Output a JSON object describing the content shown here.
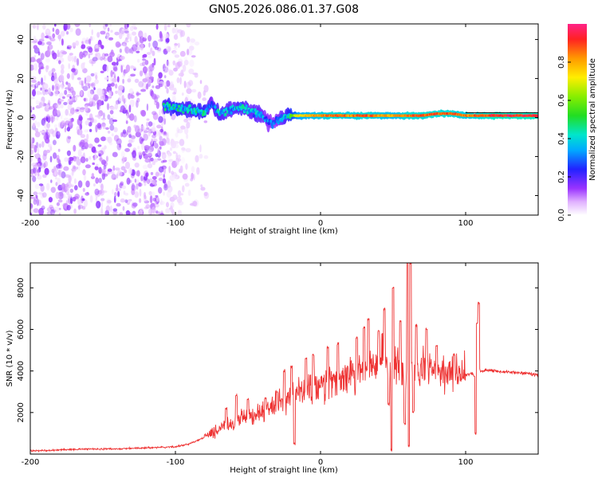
{
  "title": "GN05.2026.086.01.37.G08",
  "chart_data": [
    {
      "type": "heatmap",
      "title": "GN05.2026.086.01.37.G08",
      "xlabel": "Height of straight line (km)",
      "ylabel": "Frequency (Hz)",
      "xlim": [
        -200,
        150
      ],
      "ylim": [
        -50,
        48
      ],
      "xticks": [
        -200,
        -100,
        0,
        100
      ],
      "yticks": [
        -40,
        -20,
        0,
        20,
        40
      ],
      "colorbar": {
        "label": "Normalized spectral amplitude",
        "range": [
          0,
          1
        ],
        "ticks": [
          0.0,
          0.2,
          0.4,
          0.6,
          0.8
        ]
      },
      "noise_region": {
        "x_from": -200,
        "x_to": -105,
        "fade_to": -78,
        "level": 0.1
      },
      "ridge": [
        {
          "x": -108,
          "y": 6,
          "amp": 0.45
        },
        {
          "x": -100,
          "y": 5,
          "amp": 0.5
        },
        {
          "x": -90,
          "y": 4,
          "amp": 0.45
        },
        {
          "x": -80,
          "y": 3,
          "amp": 0.5
        },
        {
          "x": -75,
          "y": 7,
          "amp": 0.35
        },
        {
          "x": -70,
          "y": 2,
          "amp": 0.45
        },
        {
          "x": -62,
          "y": 4,
          "amp": 0.4
        },
        {
          "x": -55,
          "y": 5,
          "amp": 0.45
        },
        {
          "x": -48,
          "y": 3,
          "amp": 0.4
        },
        {
          "x": -42,
          "y": 2,
          "amp": 0.4
        },
        {
          "x": -38,
          "y": -1,
          "amp": 0.35
        },
        {
          "x": -33,
          "y": -3,
          "amp": 0.3
        },
        {
          "x": -28,
          "y": -1,
          "amp": 0.35
        },
        {
          "x": -22,
          "y": 1,
          "amp": 0.5
        },
        {
          "x": -15,
          "y": 1,
          "amp": 0.75
        },
        {
          "x": -8,
          "y": 1,
          "amp": 0.8
        },
        {
          "x": 0,
          "y": 1,
          "amp": 0.85
        },
        {
          "x": 10,
          "y": 1,
          "amp": 0.9
        },
        {
          "x": 20,
          "y": 1,
          "amp": 0.85
        },
        {
          "x": 30,
          "y": 1,
          "amp": 0.9
        },
        {
          "x": 40,
          "y": 1,
          "amp": 0.85
        },
        {
          "x": 50,
          "y": 1,
          "amp": 0.8
        },
        {
          "x": 60,
          "y": 1,
          "amp": 0.9
        },
        {
          "x": 70,
          "y": 1,
          "amp": 0.9
        },
        {
          "x": 80,
          "y": 2,
          "amp": 0.9
        },
        {
          "x": 90,
          "y": 2,
          "amp": 0.9
        },
        {
          "x": 100,
          "y": 1,
          "amp": 0.85
        },
        {
          "x": 110,
          "y": 1,
          "amp": 0.9
        },
        {
          "x": 120,
          "y": 1,
          "amp": 0.95
        },
        {
          "x": 130,
          "y": 1,
          "amp": 0.95
        },
        {
          "x": 140,
          "y": 1,
          "amp": 0.95
        },
        {
          "x": 150,
          "y": 1,
          "amp": 0.95
        }
      ]
    },
    {
      "type": "line",
      "xlabel": "Height of straight line (km)",
      "ylabel": "SNR (10 * v/v)",
      "xlim": [
        -200,
        150
      ],
      "ylim": [
        0,
        9200
      ],
      "xticks": [
        -200,
        -100,
        0,
        100
      ],
      "yticks": [
        2000,
        4000,
        6000,
        8000
      ],
      "color": "#ee3333",
      "series": [
        {
          "name": "SNR",
          "x": [
            -200,
            -180,
            -160,
            -140,
            -120,
            -100,
            -90,
            -80,
            -75,
            -70,
            -65,
            -60,
            -55,
            -50,
            -45,
            -40,
            -35,
            -30,
            -25,
            -20,
            -15,
            -10,
            -5,
            0,
            5,
            10,
            15,
            20,
            25,
            30,
            35,
            40,
            45,
            48,
            50,
            52,
            55,
            58,
            60,
            62,
            65,
            70,
            75,
            80,
            85,
            90,
            95,
            100,
            105,
            107,
            108,
            109,
            110,
            115,
            120,
            130,
            140,
            150
          ],
          "y": [
            150,
            200,
            250,
            250,
            300,
            350,
            500,
            800,
            1000,
            1200,
            1400,
            1500,
            1700,
            1900,
            1900,
            2000,
            2200,
            2400,
            2600,
            2800,
            2900,
            3100,
            3200,
            3300,
            3400,
            3500,
            3700,
            3800,
            3900,
            4000,
            4200,
            4400,
            4500,
            4000,
            4300,
            4500,
            4400,
            4200,
            4500,
            4400,
            4300,
            4200,
            4100,
            4000,
            3900,
            3850,
            3800,
            3800,
            3900,
            3500,
            2700,
            4500,
            4000,
            4050,
            4000,
            3950,
            3900,
            3800
          ]
        }
      ],
      "spikes": [
        {
          "x": -65,
          "y": 2200
        },
        {
          "x": -58,
          "y": 2800
        },
        {
          "x": -50,
          "y": 2600
        },
        {
          "x": -38,
          "y": 2700
        },
        {
          "x": -30,
          "y": 3000
        },
        {
          "x": -25,
          "y": 4000
        },
        {
          "x": -20,
          "y": 4200
        },
        {
          "x": -18,
          "y": 500
        },
        {
          "x": -10,
          "y": 4600
        },
        {
          "x": -5,
          "y": 4800
        },
        {
          "x": 5,
          "y": 5100
        },
        {
          "x": 12,
          "y": 5300
        },
        {
          "x": 25,
          "y": 5600
        },
        {
          "x": 30,
          "y": 6100
        },
        {
          "x": 33,
          "y": 6500
        },
        {
          "x": 40,
          "y": 5900
        },
        {
          "x": 44,
          "y": 7000
        },
        {
          "x": 47,
          "y": 2400
        },
        {
          "x": 49,
          "y": 200
        },
        {
          "x": 50,
          "y": 8000
        },
        {
          "x": 55,
          "y": 6400
        },
        {
          "x": 58,
          "y": 1500
        },
        {
          "x": 60,
          "y": 9200
        },
        {
          "x": 61,
          "y": 400
        },
        {
          "x": 62,
          "y": 9200
        },
        {
          "x": 64,
          "y": 2000
        },
        {
          "x": 66,
          "y": 6200
        },
        {
          "x": 73,
          "y": 6000
        },
        {
          "x": 80,
          "y": 5200
        },
        {
          "x": 92,
          "y": 4800
        },
        {
          "x": 107,
          "y": 1000
        },
        {
          "x": 108,
          "y": 6300
        },
        {
          "x": 109,
          "y": 7300
        }
      ]
    }
  ]
}
